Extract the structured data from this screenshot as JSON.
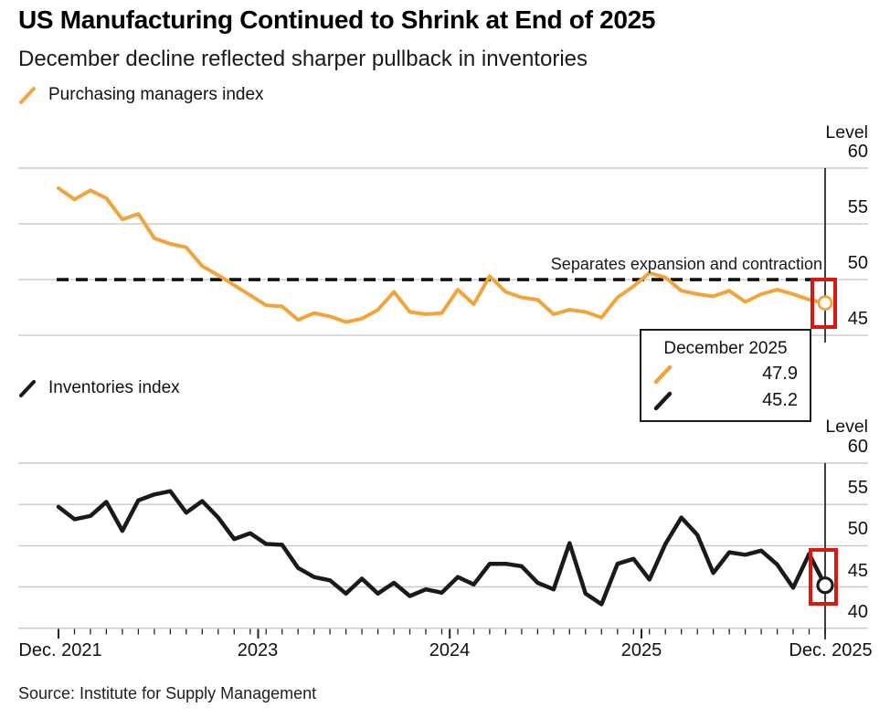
{
  "header": {
    "title": "US Manufacturing Continued to Shrink at End of 2025",
    "subtitle": "December decline reflected sharper pullback in inventories"
  },
  "legends": [
    {
      "label": "Purchasing managers index"
    },
    {
      "label": "Inventories index"
    }
  ],
  "tooltip": {
    "title": "December 2025"
  },
  "source": "Source: Institute for Supply Management",
  "colors": {
    "pmi": "#F2A43A",
    "inventories": "#1a1a1a",
    "highlight": "#DB1710",
    "gridline": "#c9c9c9",
    "dashed": "#111111",
    "tick": "#222222",
    "marker_line": "#3f3f3f"
  },
  "chart_data": [
    {
      "type": "line",
      "name": "Purchasing managers index",
      "axis_label": "Level",
      "yticks": [
        60,
        55,
        50,
        45
      ],
      "ylim": [
        43.5,
        61
      ],
      "x_range": [
        "Dec. 2021",
        "Dec. 2025"
      ],
      "frequency": "monthly",
      "values": [
        58.2,
        57.2,
        58.0,
        57.3,
        55.4,
        55.9,
        53.7,
        53.2,
        52.9,
        51.2,
        50.4,
        49.5,
        48.6,
        47.7,
        47.6,
        46.4,
        47.0,
        46.7,
        46.2,
        46.5,
        47.3,
        48.9,
        47.1,
        46.9,
        47.0,
        49.1,
        47.8,
        50.3,
        48.9,
        48.4,
        48.2,
        46.9,
        47.3,
        47.1,
        46.6,
        48.4,
        49.4,
        50.6,
        50.2,
        49.0,
        48.7,
        48.5,
        49.0,
        48.0,
        48.7,
        49.1,
        48.7,
        48.2,
        47.9
      ],
      "ref_line": {
        "value": 50,
        "label": "Separates expansion and contraction",
        "style": "dashed"
      },
      "end_point": {
        "label": "December 2025",
        "value": 47.9,
        "highlighted": true
      }
    },
    {
      "type": "line",
      "name": "Inventories index",
      "axis_label": "Level",
      "yticks": [
        60,
        55,
        50,
        45,
        40
      ],
      "ylim": [
        38.5,
        61
      ],
      "x_tick_labels": [
        "Dec. 2021",
        "2023",
        "2024",
        "2025",
        "Dec. 2025"
      ],
      "x_range": [
        "Dec. 2021",
        "Dec. 2025"
      ],
      "frequency": "monthly",
      "values": [
        54.7,
        53.2,
        53.6,
        55.3,
        51.8,
        55.5,
        56.2,
        56.6,
        54.0,
        55.4,
        53.4,
        50.8,
        51.5,
        50.2,
        50.1,
        47.3,
        46.2,
        45.8,
        44.2,
        46.0,
        44.2,
        45.5,
        43.9,
        44.7,
        44.3,
        46.2,
        45.3,
        47.8,
        47.8,
        47.5,
        45.5,
        44.7,
        50.3,
        44.2,
        42.9,
        47.8,
        48.4,
        45.9,
        50.2,
        53.4,
        51.3,
        46.7,
        49.2,
        48.9,
        49.4,
        47.7,
        44.9,
        49.0,
        45.2
      ],
      "end_point": {
        "label": "December 2025",
        "value": 45.2,
        "highlighted": true
      }
    }
  ]
}
